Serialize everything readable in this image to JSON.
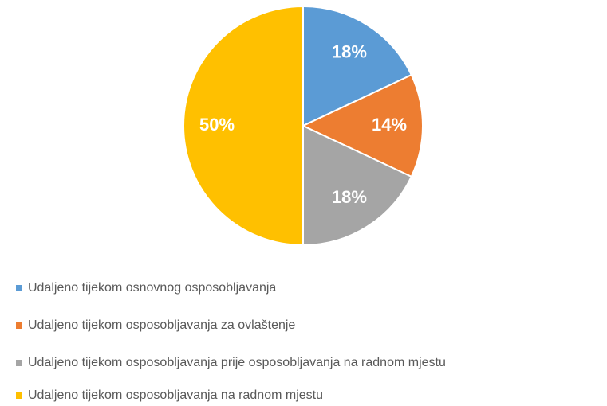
{
  "chart_data": {
    "type": "pie",
    "categories": [
      "Udaljeno tijekom osnovnog osposobljavanja",
      "Udaljeno tijekom osposobljavanja za ovlaštenje",
      "Udaljeno tijekom osposobljavanja prije osposobljavanja na radnom mjestu",
      "Udaljeno tijekom osposobljavanja na radnom mjestu"
    ],
    "values": [
      18,
      14,
      18,
      50
    ],
    "value_labels": [
      "18%",
      "14%",
      "18%",
      "50%"
    ],
    "colors": [
      "#5b9bd5",
      "#ed7d31",
      "#a5a5a5",
      "#ffc000"
    ],
    "legend": "bottom"
  }
}
